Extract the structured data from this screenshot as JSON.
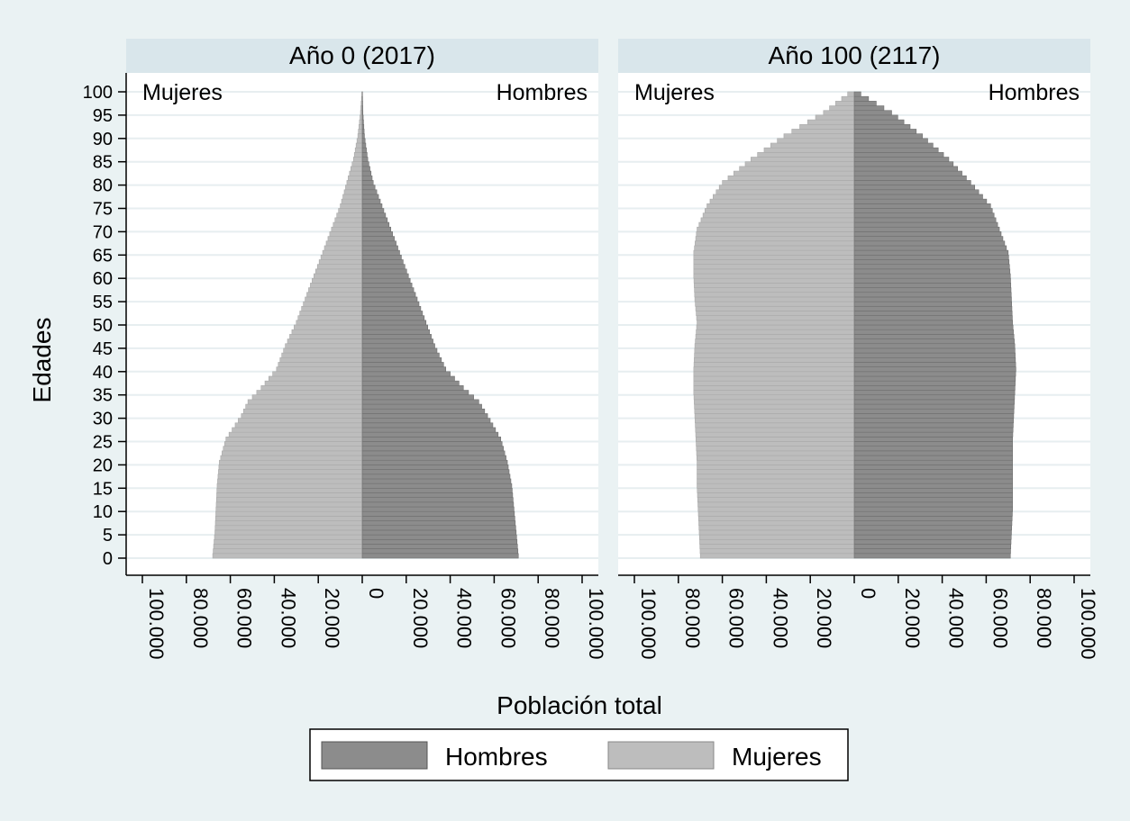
{
  "chart_data": {
    "type": "bar",
    "orientation": "horizontal-population-pyramid",
    "xlabel": "Población total",
    "ylabel": "Edades",
    "xlim": [
      -100000,
      100000
    ],
    "ylim": [
      0,
      100
    ],
    "x_ticks": [
      -100000,
      -80000,
      -60000,
      -40000,
      -20000,
      0,
      20000,
      40000,
      60000,
      80000,
      100000
    ],
    "x_tick_labels": [
      "100.000",
      "80.000",
      "60.000",
      "40.000",
      "20.000",
      "0",
      "20.000",
      "40.000",
      "60.000",
      "80.000",
      "100.000"
    ],
    "y_ticks": [
      0,
      5,
      10,
      15,
      20,
      25,
      30,
      35,
      40,
      45,
      50,
      55,
      60,
      65,
      70,
      75,
      80,
      85,
      90,
      95,
      100
    ],
    "grid": true,
    "legend": {
      "placement": "bottom-center",
      "entries": [
        {
          "label": "Hombres",
          "color": "#8c8c8c"
        },
        {
          "label": "Mujeres",
          "color": "#bdbdbd"
        }
      ]
    },
    "colors": {
      "hombres": "#8c8c8c",
      "mujeres": "#bdbdbd",
      "panel_header": "#d9e6eb",
      "background": "#eaf2f3"
    },
    "panels": [
      {
        "title": "Año 0 (2017)",
        "left_label": "Mujeres",
        "right_label": "Hombres",
        "anchors": {
          "hombres": [
            [
              0,
              71000
            ],
            [
              5,
              70000
            ],
            [
              10,
              69000
            ],
            [
              15,
              68000
            ],
            [
              20,
              66000
            ],
            [
              25,
              63000
            ],
            [
              30,
              57000
            ],
            [
              33,
              53000
            ],
            [
              36,
              46000
            ],
            [
              40,
              38000
            ],
            [
              45,
              33000
            ],
            [
              50,
              29000
            ],
            [
              55,
              25000
            ],
            [
              60,
              21000
            ],
            [
              65,
              17000
            ],
            [
              70,
              13000
            ],
            [
              75,
              9000
            ],
            [
              80,
              5000
            ],
            [
              85,
              2500
            ],
            [
              90,
              1000
            ],
            [
              95,
              300
            ],
            [
              99,
              100
            ]
          ],
          "mujeres": [
            [
              0,
              68000
            ],
            [
              5,
              67000
            ],
            [
              10,
              66500
            ],
            [
              15,
              66000
            ],
            [
              20,
              65000
            ],
            [
              25,
              62000
            ],
            [
              30,
              55000
            ],
            [
              33,
              52000
            ],
            [
              36,
              46000
            ],
            [
              40,
              39000
            ],
            [
              45,
              35000
            ],
            [
              50,
              30000
            ],
            [
              55,
              26000
            ],
            [
              60,
              22000
            ],
            [
              65,
              18000
            ],
            [
              70,
              14000
            ],
            [
              75,
              10000
            ],
            [
              80,
              7000
            ],
            [
              85,
              4000
            ],
            [
              90,
              2000
            ],
            [
              95,
              800
            ],
            [
              99,
              200
            ]
          ]
        }
      },
      {
        "title": "Año 100 (2117)",
        "left_label": "Mujeres",
        "right_label": "Hombres",
        "anchors": {
          "hombres": [
            [
              0,
              71000
            ],
            [
              5,
              71500
            ],
            [
              10,
              72000
            ],
            [
              15,
              72000
            ],
            [
              20,
              72000
            ],
            [
              25,
              72000
            ],
            [
              30,
              72500
            ],
            [
              35,
              73000
            ],
            [
              40,
              73500
            ],
            [
              45,
              73000
            ],
            [
              50,
              72000
            ],
            [
              55,
              71500
            ],
            [
              60,
              71000
            ],
            [
              65,
              70000
            ],
            [
              70,
              66000
            ],
            [
              75,
              62000
            ],
            [
              80,
              53000
            ],
            [
              85,
              43000
            ],
            [
              90,
              31000
            ],
            [
              95,
              17000
            ],
            [
              99,
              3000
            ]
          ],
          "mujeres": [
            [
              0,
              70000
            ],
            [
              5,
              70500
            ],
            [
              10,
              71000
            ],
            [
              15,
              71500
            ],
            [
              20,
              71500
            ],
            [
              25,
              72000
            ],
            [
              30,
              72500
            ],
            [
              35,
              73000
            ],
            [
              40,
              73000
            ],
            [
              45,
              72500
            ],
            [
              50,
              71500
            ],
            [
              55,
              72500
            ],
            [
              60,
              73000
            ],
            [
              65,
              73000
            ],
            [
              70,
              71500
            ],
            [
              75,
              67000
            ],
            [
              80,
              60000
            ],
            [
              85,
              47000
            ],
            [
              90,
              32000
            ],
            [
              95,
              14000
            ],
            [
              99,
              3000
            ]
          ]
        }
      }
    ]
  }
}
